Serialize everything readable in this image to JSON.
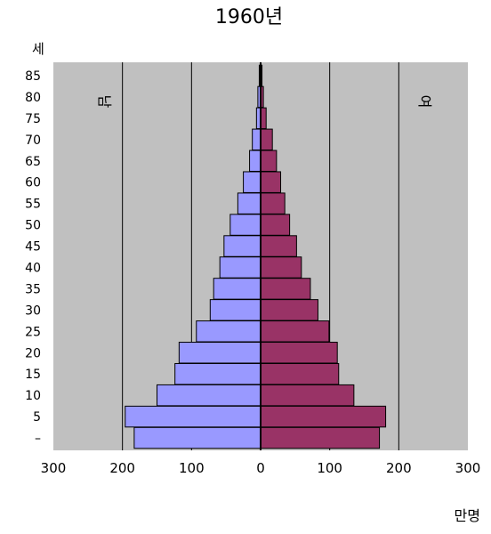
{
  "chart_data": {
    "type": "bar",
    "orientation": "horizontal",
    "layout": "population-pyramid",
    "title": "1960년",
    "ylabel": "세",
    "xlabel": "만명",
    "categories": [
      "–",
      "5",
      "10",
      "15",
      "20",
      "25",
      "30",
      "35",
      "40",
      "45",
      "50",
      "55",
      "60",
      "65",
      "70",
      "75",
      "80",
      "85"
    ],
    "xlim": [
      -300,
      300
    ],
    "x_ticks": [
      -300,
      -200,
      -100,
      0,
      100,
      200,
      300
    ],
    "x_tick_labels": [
      "300",
      "200",
      "100",
      "0",
      "100",
      "200",
      "300"
    ],
    "grid": true,
    "series": [
      {
        "name": "남",
        "side": "left",
        "color": "#9999ff",
        "values": [
          183,
          196,
          150,
          124,
          118,
          93,
          73,
          68,
          59,
          53,
          44,
          33,
          25,
          16,
          12,
          6,
          4,
          2
        ]
      },
      {
        "name": "여",
        "side": "right",
        "color": "#993366",
        "values": [
          172,
          181,
          135,
          113,
          111,
          99,
          83,
          72,
          59,
          52,
          42,
          35,
          29,
          23,
          17,
          8,
          4,
          2
        ]
      }
    ],
    "colors": {
      "plot_background": "#c0c0c0",
      "gridline": "#000000",
      "bar_border": "#000000"
    }
  }
}
